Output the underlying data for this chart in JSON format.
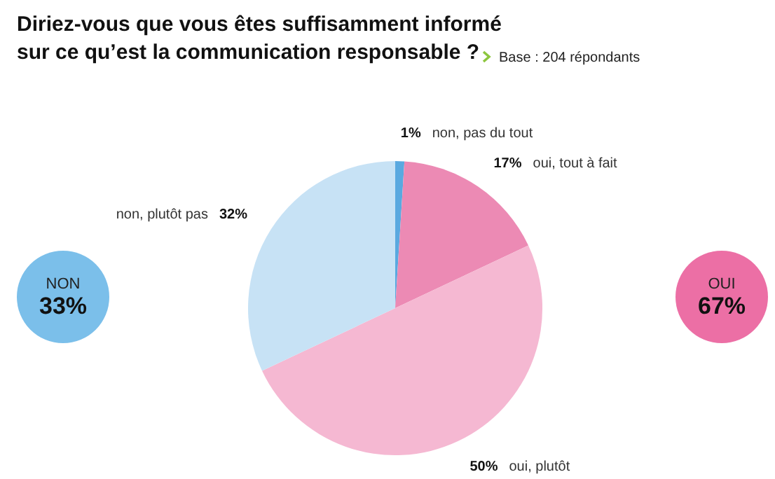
{
  "chart_data": {
    "type": "pie",
    "title": "Diriez-vous que vous êtes suffisamment informé\nsur ce qu’est la communication responsable ?",
    "subtitle": "Base : 204 répondants",
    "categories": [
      "non, pas du tout",
      "oui, tout à fait",
      "oui, plutôt",
      "non, plutôt pas"
    ],
    "values": [
      1,
      17,
      50,
      32
    ],
    "colors": [
      "#5aa9e0",
      "#ec8ab4",
      "#f5b8d2",
      "#c7e2f5"
    ],
    "value_labels": [
      "1%",
      "17%",
      "50%",
      "32%"
    ],
    "annotations": [
      "NON",
      "33%",
      "OUI",
      "67%"
    ]
  }
}
